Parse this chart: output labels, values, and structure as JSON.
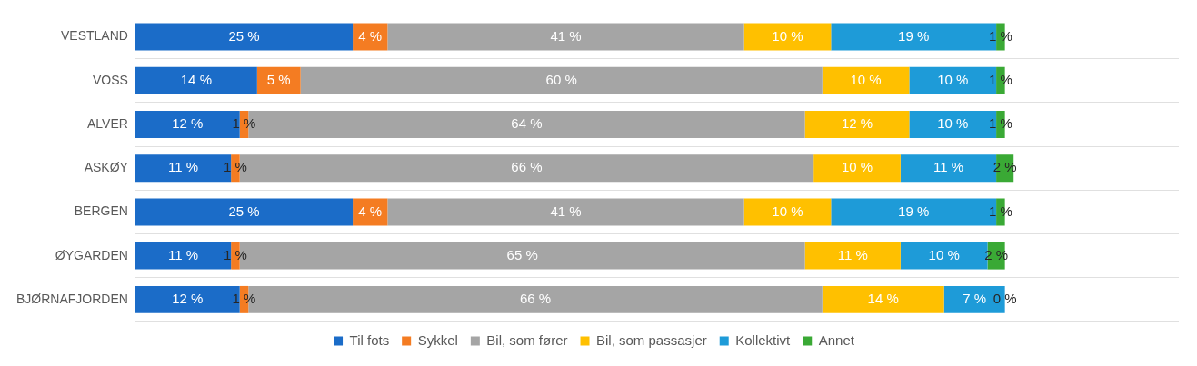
{
  "chart_data": {
    "type": "bar",
    "orientation": "horizontal",
    "stacked": true,
    "grid": "y",
    "legend": "bottom",
    "tick_labels": "y",
    "categories": [
      "VESTLAND",
      "VOSS",
      "ALVER",
      "ASKØY",
      "BERGEN",
      "ØYGARDEN",
      "BJØRNAFJORDEN"
    ],
    "series": [
      {
        "name": "Til fots",
        "color": "#1b6cc8",
        "values": [
          25,
          14,
          12,
          11,
          25,
          11,
          12
        ],
        "value_labels": [
          "25 %",
          "14 %",
          "12 %",
          "11 %",
          "25 %",
          "11 %",
          "12 %"
        ]
      },
      {
        "name": "Sykkel",
        "color": "#f47c22",
        "values": [
          4,
          5,
          1,
          1,
          4,
          1,
          1
        ],
        "value_labels": [
          "4 %",
          "5 %",
          "1 %",
          "1 %",
          "4 %",
          "1 %",
          "1 %"
        ]
      },
      {
        "name": "Bil, som fører",
        "color": "#a5a5a5",
        "values": [
          41,
          60,
          64,
          66,
          41,
          65,
          66
        ],
        "value_labels": [
          "41 %",
          "60 %",
          "64 %",
          "66 %",
          "41 %",
          "65 %",
          "66 %"
        ]
      },
      {
        "name": "Bil, som passasjer",
        "color": "#ffc000",
        "values": [
          10,
          10,
          12,
          10,
          10,
          11,
          14
        ],
        "value_labels": [
          "10 %",
          "10 %",
          "12 %",
          "10 %",
          "10 %",
          "11 %",
          "14 %"
        ]
      },
      {
        "name": "Kollektivt",
        "color": "#1e9bd8",
        "values": [
          19,
          10,
          10,
          11,
          19,
          10,
          7
        ],
        "value_labels": [
          "19 %",
          "10 %",
          "10 %",
          "11 %",
          "19 %",
          "10 %",
          "7 %"
        ]
      },
      {
        "name": "Annet",
        "color": "#3aa935",
        "values": [
          1,
          1,
          1,
          2,
          1,
          2,
          0
        ],
        "value_labels": [
          "1 %",
          "1 %",
          "1 %",
          "2 %",
          "1 %",
          "2 %",
          "0 %"
        ]
      }
    ]
  }
}
